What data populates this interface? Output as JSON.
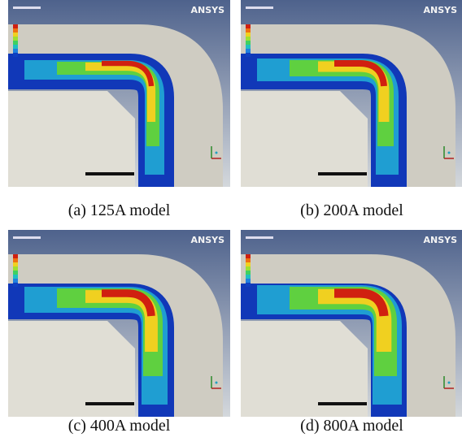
{
  "logo": "ANSYS",
  "figures": [
    {
      "caption": "(a)  125A  model"
    },
    {
      "caption": "(b)  200A  model"
    },
    {
      "caption": "(c)  400A  model"
    },
    {
      "caption": "(d)  800A  model"
    }
  ]
}
